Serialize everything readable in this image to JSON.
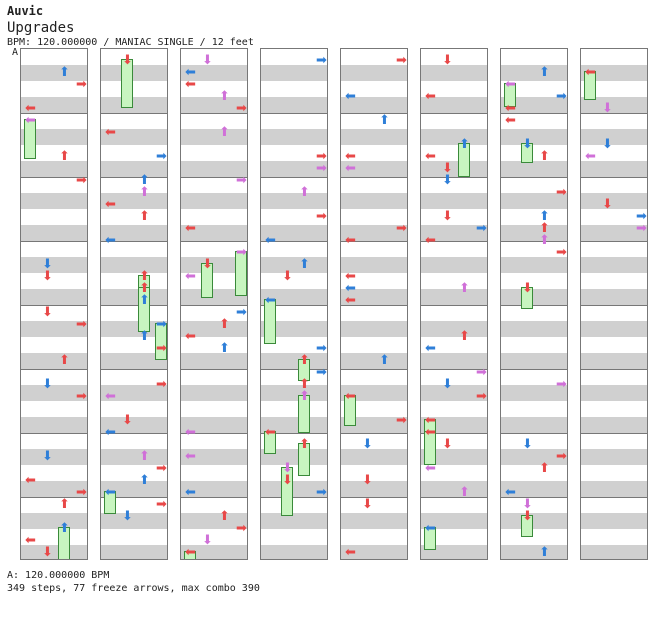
{
  "header": {
    "artist": "Auvic",
    "title": "Upgrades",
    "meta": "BPM: 120.000000 / MANIAC SINGLE / 12 feet"
  },
  "marker": "A",
  "footer": {
    "bpm_line": "A: 120.000000 BPM",
    "stats_line": "349 steps, 77 freeze arrows, max combo 390"
  },
  "colors": {
    "red": "#e84848",
    "blue": "#2f7fd8",
    "pink": "#d070d8",
    "freeze_fill": "#c8f5c0",
    "gray_band": "#d0d0d0"
  },
  "icons": {
    "left": "left-arrow-icon",
    "down": "down-arrow-icon",
    "up": "up-arrow-icon",
    "right": "right-arrow-icon"
  },
  "chart_data": {
    "type": "table",
    "columns": 8,
    "measures_per_column": 8,
    "lanes": [
      "left",
      "down",
      "up",
      "right"
    ]
  }
}
